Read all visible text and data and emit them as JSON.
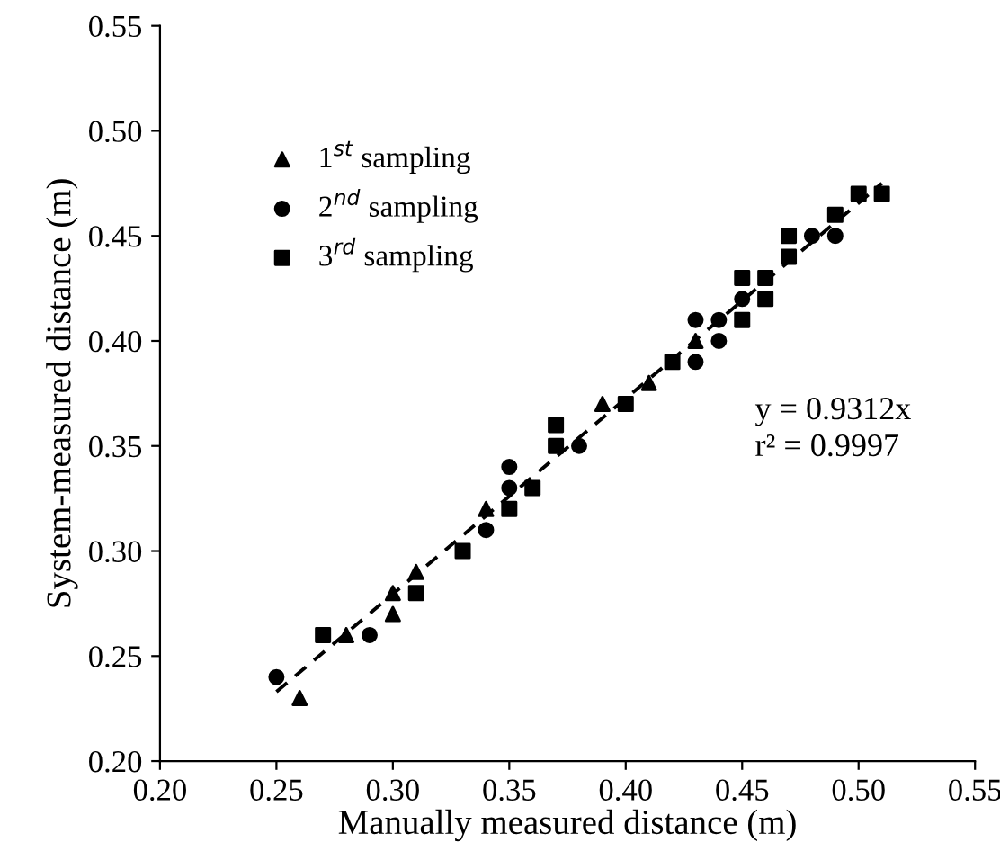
{
  "chart_data": {
    "type": "scatter",
    "xlabel": "Manually measured distance (m)",
    "ylabel": "System-measured distance (m)",
    "xlim": [
      0.2,
      0.55
    ],
    "ylim": [
      0.2,
      0.55
    ],
    "xticks": [
      {
        "value": 0.2,
        "label": "0.20"
      },
      {
        "value": 0.25,
        "label": "0.25"
      },
      {
        "value": 0.3,
        "label": "0.30"
      },
      {
        "value": 0.35,
        "label": "0.35"
      },
      {
        "value": 0.4,
        "label": "0.40"
      },
      {
        "value": 0.45,
        "label": "0.45"
      },
      {
        "value": 0.5,
        "label": "0.50"
      },
      {
        "value": 0.55,
        "label": "0.55"
      }
    ],
    "yticks": [
      {
        "value": 0.2,
        "label": "0.20"
      },
      {
        "value": 0.25,
        "label": "0.25"
      },
      {
        "value": 0.3,
        "label": "0.30"
      },
      {
        "value": 0.35,
        "label": "0.35"
      },
      {
        "value": 0.4,
        "label": "0.40"
      },
      {
        "value": 0.45,
        "label": "0.45"
      },
      {
        "value": 0.5,
        "label": "0.50"
      },
      {
        "value": 0.55,
        "label": "0.55"
      }
    ],
    "grid": false,
    "legend": "top left",
    "annotations": [
      "y = 0.9312x",
      "r² = 0.9997"
    ],
    "series": [
      {
        "name": "1$^{st}$ sampling",
        "color": "#000000",
        "marker": "triangle",
        "x": [
          0.26,
          0.28,
          0.3,
          0.3,
          0.31,
          0.34,
          0.39,
          0.41,
          0.43
        ],
        "values": [
          0.23,
          0.26,
          0.27,
          0.28,
          0.29,
          0.32,
          0.37,
          0.38,
          0.4
        ]
      },
      {
        "name": "2$^{nd}$ sampling",
        "color": "#000000",
        "marker": "circle",
        "x": [
          0.25,
          0.29,
          0.34,
          0.35,
          0.35,
          0.38,
          0.43,
          0.43,
          0.44,
          0.44,
          0.45,
          0.48,
          0.49
        ],
        "values": [
          0.24,
          0.26,
          0.31,
          0.33,
          0.34,
          0.35,
          0.39,
          0.41,
          0.4,
          0.41,
          0.42,
          0.45,
          0.45
        ]
      },
      {
        "name": "3$^{rd}$ sampling",
        "color": "#000000",
        "marker": "square",
        "x": [
          0.27,
          0.31,
          0.33,
          0.35,
          0.36,
          0.37,
          0.37,
          0.4,
          0.42,
          0.45,
          0.45,
          0.46,
          0.46,
          0.47,
          0.47,
          0.49,
          0.5,
          0.51
        ],
        "values": [
          0.26,
          0.28,
          0.3,
          0.32,
          0.33,
          0.35,
          0.36,
          0.37,
          0.39,
          0.41,
          0.43,
          0.42,
          0.43,
          0.44,
          0.45,
          0.46,
          0.47,
          0.47
        ]
      },
      {
        "type": "line",
        "color": "#000000",
        "line_style": "dashed",
        "marker": "none",
        "x": [
          0.25,
          0.51
        ],
        "values": [
          0.233,
          0.475
        ]
      }
    ]
  }
}
